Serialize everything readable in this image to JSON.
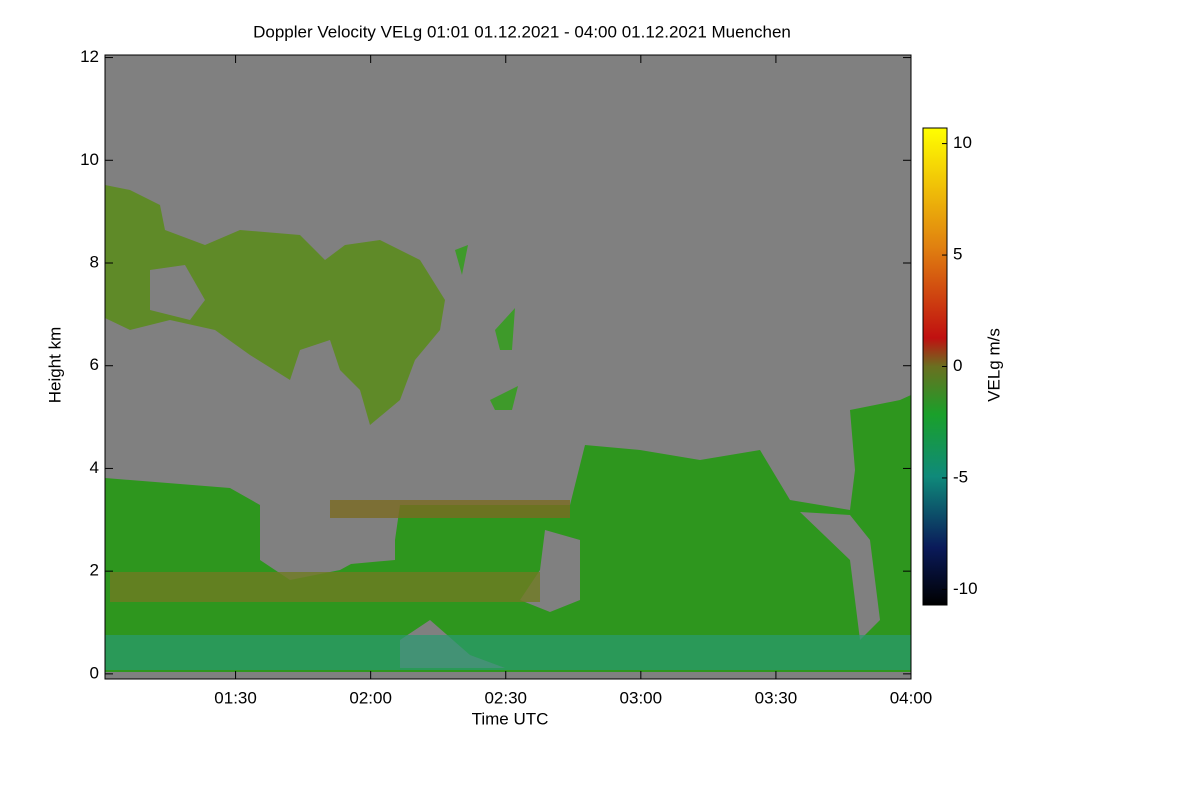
{
  "chart_data": {
    "type": "heatmap",
    "title": "Doppler Velocity VELg   01:01 01.12.2021 - 04:00 01.12.2021 Muenchen",
    "x_label": "Time UTC",
    "y_label": "Height km",
    "xlim": [
      61,
      240
    ],
    "xticks": [
      {
        "value": 90,
        "label": "01:30"
      },
      {
        "value": 120,
        "label": "02:00"
      },
      {
        "value": 150,
        "label": "02:30"
      },
      {
        "value": 180,
        "label": "03:00"
      },
      {
        "value": 210,
        "label": "03:30"
      },
      {
        "value": 240,
        "label": "04:00"
      }
    ],
    "ylim": [
      -0.1,
      12.05
    ],
    "yticks": [
      0,
      2,
      4,
      6,
      8,
      10,
      12
    ],
    "colorbar_label": "VELg m/s",
    "clim": [
      -10.7,
      10.7
    ],
    "cticks": [
      10,
      5,
      0,
      -5,
      -10
    ]
  }
}
